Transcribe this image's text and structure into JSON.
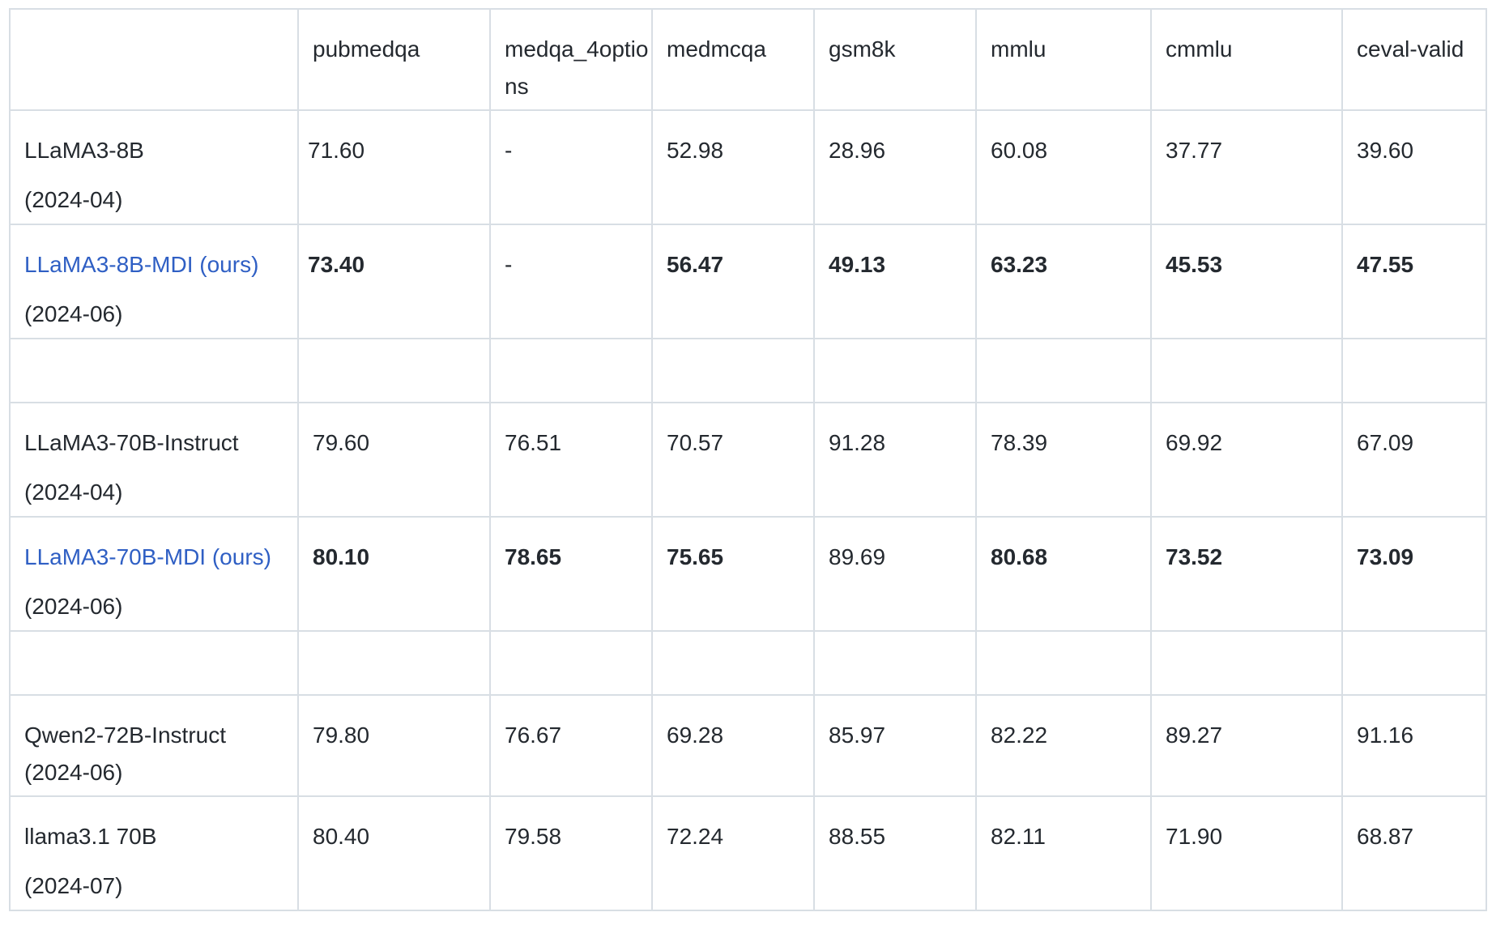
{
  "table": {
    "columns": [
      "",
      "pubmedqa",
      "medqa_4options",
      "medmcqa",
      "gsm8k",
      "mmlu",
      "cmmlu",
      "ceval-valid"
    ],
    "rows": [
      {
        "model": "LLaMA3-8B",
        "date": "(2024-04)",
        "is_ours": false,
        "cells": [
          {
            "v": "71.60",
            "bold": false
          },
          {
            "v": "-",
            "bold": false
          },
          {
            "v": "52.98",
            "bold": false
          },
          {
            "v": "28.96",
            "bold": false
          },
          {
            "v": "60.08",
            "bold": false
          },
          {
            "v": "37.77",
            "bold": false
          },
          {
            "v": "39.60",
            "bold": false
          }
        ]
      },
      {
        "model": "LLaMA3-8B-MDI (ours)",
        "date": "(2024-06)",
        "is_ours": true,
        "cells": [
          {
            "v": "73.40",
            "bold": true
          },
          {
            "v": "-",
            "bold": false
          },
          {
            "v": "56.47",
            "bold": true
          },
          {
            "v": "49.13",
            "bold": true
          },
          {
            "v": "63.23",
            "bold": true
          },
          {
            "v": "45.53",
            "bold": true
          },
          {
            "v": "47.55",
            "bold": true
          }
        ]
      },
      {
        "empty": true
      },
      {
        "model": "LLaMA3-70B-Instruct",
        "date": "(2024-04)",
        "is_ours": false,
        "cells": [
          {
            "v": "79.60",
            "bold": false
          },
          {
            "v": "76.51",
            "bold": false
          },
          {
            "v": "70.57",
            "bold": false
          },
          {
            "v": "91.28",
            "bold": false
          },
          {
            "v": "78.39",
            "bold": false
          },
          {
            "v": "69.92",
            "bold": false
          },
          {
            "v": "67.09",
            "bold": false
          }
        ]
      },
      {
        "model": "LLaMA3-70B-MDI (ours)",
        "date": "(2024-06)",
        "is_ours": true,
        "cells": [
          {
            "v": "80.10",
            "bold": true
          },
          {
            "v": "78.65",
            "bold": true
          },
          {
            "v": "75.65",
            "bold": true
          },
          {
            "v": "89.69",
            "bold": false
          },
          {
            "v": "80.68",
            "bold": true
          },
          {
            "v": "73.52",
            "bold": true
          },
          {
            "v": "73.09",
            "bold": true
          }
        ]
      },
      {
        "empty": true
      },
      {
        "model": "Qwen2-72B-Instruct",
        "date": "(2024-06)",
        "is_ours": false,
        "tight": true,
        "cells": [
          {
            "v": "79.80",
            "bold": false
          },
          {
            "v": "76.67",
            "bold": false
          },
          {
            "v": "69.28",
            "bold": false
          },
          {
            "v": "85.97",
            "bold": false
          },
          {
            "v": "82.22",
            "bold": false
          },
          {
            "v": "89.27",
            "bold": false
          },
          {
            "v": "91.16",
            "bold": false
          }
        ]
      },
      {
        "model": "llama3.1 70B",
        "date": "(2024-07)",
        "is_ours": false,
        "cells": [
          {
            "v": "80.40",
            "bold": false
          },
          {
            "v": "79.58",
            "bold": false
          },
          {
            "v": "72.24",
            "bold": false
          },
          {
            "v": "88.55",
            "bold": false
          },
          {
            "v": "82.11",
            "bold": false
          },
          {
            "v": "71.90",
            "bold": false
          },
          {
            "v": "68.87",
            "bold": false
          }
        ]
      }
    ],
    "colors": {
      "text": "#24292f",
      "link": "#2f5fc4",
      "border": "#d8dee4"
    }
  }
}
